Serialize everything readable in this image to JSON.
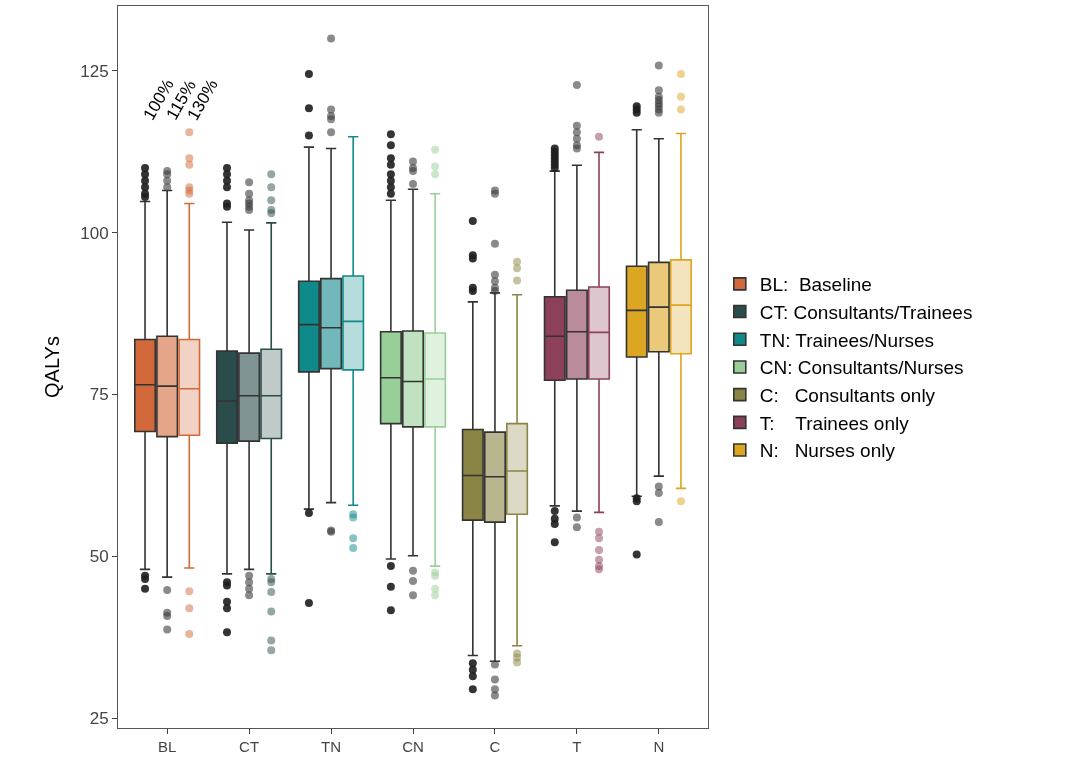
{
  "chart_data": {
    "type": "box",
    "ylabel": "QALYs",
    "categories": [
      "BL",
      "CT",
      "TN",
      "CN",
      "C",
      "T",
      "N"
    ],
    "ylim": [
      23.5,
      135
    ],
    "yticks": [
      25,
      50,
      75,
      100,
      125
    ],
    "legend": "right",
    "annotations": [
      "100%",
      "115%",
      "130%"
    ],
    "series": [
      {
        "name": "BL:  Baseline",
        "color": "#d2693a",
        "boxes": [
          {
            "low": 48,
            "q1": 69.3,
            "median": 76.5,
            "q3": 83.5,
            "high": 104.8,
            "outliers": [
              110,
              109,
              108,
              107,
              106,
              105.5,
              47,
              46.5,
              45
            ]
          },
          null,
          null,
          null,
          null,
          null,
          null
        ]
      },
      {
        "color": "#e4a589",
        "boxes": [
          {
            "low": 46.8,
            "q1": 68.5,
            "median": 76.3,
            "q3": 84,
            "high": 106.5,
            "outliers": [
              109.5,
              109,
              108,
              107,
              44.8,
              41.3,
              40.8,
              38.7
            ]
          },
          null,
          null,
          null,
          null,
          null,
          null
        ]
      },
      {
        "color": "#f2d2c4",
        "boxes": [
          {
            "low": 48.2,
            "q1": 68.7,
            "median": 75.9,
            "q3": 83.5,
            "high": 104.5,
            "outliers": [
              115.5,
              111.5,
              110.5,
              107,
              106.5,
              106,
              44.6,
              42,
              38
            ]
          },
          null,
          null,
          null,
          null,
          null,
          null
        ]
      },
      {
        "name": "CT: Consultants/Trainees",
        "color": "#2a4d4b",
        "boxes": [
          null,
          {
            "low": 47.3,
            "q1": 67.5,
            "median": 74,
            "q3": 81.7,
            "high": 101.6,
            "outliers": [
              110,
              109,
              108,
              107,
              104.5,
              104,
              46,
              45.5,
              43,
              42,
              38.3
            ]
          },
          null,
          null,
          null,
          null,
          null
        ]
      },
      {
        "color": "#7f9493",
        "boxes": [
          null,
          {
            "low": 48,
            "q1": 67.8,
            "median": 74.8,
            "q3": 81.4,
            "high": 100.4,
            "outliers": [
              107.8,
              106,
              105,
              104.5,
              104,
              103.5,
              47,
              46,
              45,
              44
            ]
          },
          null,
          null,
          null,
          null,
          null
        ]
      },
      {
        "color": "#bfcac9",
        "boxes": [
          null,
          {
            "low": 47.3,
            "q1": 68.2,
            "median": 74.8,
            "q3": 82,
            "high": 101.5,
            "outliers": [
              109,
              107,
              105,
              103.5,
              103,
              46.5,
              46,
              44.5,
              41.5,
              37,
              35.5
            ]
          },
          null,
          null,
          null,
          null,
          null
        ]
      },
      {
        "name": "TN: Trainees/Nurses",
        "color": "#10898a",
        "boxes": [
          null,
          null,
          {
            "low": 57.3,
            "q1": 78.5,
            "median": 85.8,
            "q3": 92.5,
            "high": 113.2,
            "outliers": [
              124.5,
              119.2,
              115,
              56.7,
              42.8
            ]
          },
          null,
          null,
          null,
          null
        ]
      },
      {
        "color": "#70b8b9",
        "boxes": [
          null,
          null,
          {
            "low": 58.3,
            "q1": 79,
            "median": 85.3,
            "q3": 92.9,
            "high": 113,
            "outliers": [
              130,
              119,
              118,
              117.5,
              115.5,
              54,
              53.8
            ]
          },
          null,
          null,
          null,
          null
        ]
      },
      {
        "color": "#b7dcdc",
        "boxes": [
          null,
          null,
          {
            "low": 57.9,
            "q1": 78.8,
            "median": 86.3,
            "q3": 93.3,
            "high": 114.8,
            "outliers": [
              56.5,
              56,
              52.8,
              51.3
            ]
          },
          null,
          null,
          null,
          null
        ]
      },
      {
        "name": "CN: Consultants/Nurses",
        "color": "#98cf98",
        "boxes": [
          null,
          null,
          null,
          {
            "low": 49.6,
            "q1": 70.5,
            "median": 77.6,
            "q3": 84.7,
            "high": 105,
            "outliers": [
              115.2,
              113.5,
              111.5,
              110.5,
              109,
              108,
              107,
              106,
              48.5,
              45.3,
              41.7
            ]
          },
          null,
          null,
          null
        ]
      },
      {
        "color": "#c1e2c1",
        "boxes": [
          null,
          null,
          null,
          {
            "low": 50.1,
            "q1": 70,
            "median": 77,
            "q3": 84.8,
            "high": 106.7,
            "outliers": [
              111,
              110,
              109.5,
              107.5,
              47.8,
              46.2,
              44
            ]
          },
          null,
          null,
          null
        ]
      },
      {
        "color": "#e0f1e0",
        "boxes": [
          null,
          null,
          null,
          {
            "low": 48.5,
            "q1": 70,
            "median": 77.4,
            "q3": 84.5,
            "high": 106,
            "outliers": [
              112.8,
              110.2,
              109,
              47.5,
              47,
              45,
              44
            ]
          },
          null,
          null,
          null
        ]
      },
      {
        "name": "C:   Consultants only",
        "color": "#8b8545",
        "boxes": [
          null,
          null,
          null,
          null,
          {
            "low": 34.7,
            "q1": 55.6,
            "median": 62.5,
            "q3": 69.6,
            "high": 89.3,
            "outliers": [
              101.8,
              96.5,
              96,
              91.5,
              91,
              33.5,
              32.5,
              31.5,
              29.5
            ]
          },
          null,
          null
        ]
      },
      {
        "color": "#b9b68f",
        "boxes": [
          null,
          null,
          null,
          null,
          {
            "low": 33.8,
            "q1": 55.3,
            "median": 62.3,
            "q3": 69.2,
            "high": 90.7,
            "outliers": [
              106.5,
              106,
              98.3,
              93.5,
              92.5,
              91.5,
              91,
              33.3,
              31,
              29.5,
              28.5
            ]
          },
          null,
          null
        ]
      },
      {
        "color": "#dcdac7",
        "boxes": [
          null,
          null,
          null,
          null,
          {
            "low": 36.2,
            "q1": 56.5,
            "median": 63.2,
            "q3": 70.5,
            "high": 90.4,
            "outliers": [
              95.5,
              94.5,
              92.6,
              35,
              34.4,
              33.6
            ]
          },
          null,
          null
        ]
      },
      {
        "name": "T:    Trainees only",
        "color": "#8c4059",
        "boxes": [
          null,
          null,
          null,
          null,
          null,
          {
            "low": 57.8,
            "q1": 77.2,
            "median": 84,
            "q3": 90.1,
            "high": 109.5,
            "outliers": [
              113,
              112.5,
              112,
              111.5,
              111,
              110.5,
              110,
              57,
              55.8,
              55,
              52.2
            ]
          },
          null
        ]
      },
      {
        "color": "#ba8c9b",
        "boxes": [
          null,
          null,
          null,
          null,
          null,
          {
            "low": 57,
            "q1": 77.4,
            "median": 84.7,
            "q3": 91.1,
            "high": 110.4,
            "outliers": [
              122.8,
              116.5,
              115.5,
              114.5,
              113.5,
              113,
              56,
              54.5
            ]
          },
          null
        ]
      },
      {
        "color": "#ddc6cd",
        "boxes": [
          null,
          null,
          null,
          null,
          null,
          {
            "low": 56.8,
            "q1": 77.4,
            "median": 84.6,
            "q3": 91.6,
            "high": 112.4,
            "outliers": [
              114.8,
              53.8,
              52.8,
              51,
              49.5,
              48.5,
              48
            ]
          },
          null
        ]
      },
      {
        "name": "N:   Nurses only",
        "color": "#dca522",
        "boxes": [
          null,
          null,
          null,
          null,
          null,
          null,
          {
            "low": 59.3,
            "q1": 80.8,
            "median": 88,
            "q3": 94.8,
            "high": 115.9,
            "outliers": [
              119.5,
              119,
              118.5,
              59,
              58.5,
              50.3
            ]
          }
        ]
      },
      {
        "color": "#eac97a",
        "boxes": [
          null,
          null,
          null,
          null,
          null,
          null,
          {
            "low": 62.4,
            "q1": 81.6,
            "median": 88.5,
            "q3": 95.4,
            "high": 114.5,
            "outliers": [
              125.8,
              122,
              121,
              120.5,
              120,
              119.5,
              119,
              118.5,
              60.8,
              59.8,
              55.3
            ]
          }
        ]
      },
      {
        "color": "#f4e4bd",
        "boxes": [
          null,
          null,
          null,
          null,
          null,
          null,
          {
            "low": 60.5,
            "q1": 81.3,
            "median": 88.8,
            "q3": 95.8,
            "high": 115.3,
            "outliers": [
              124.5,
              121,
              119,
              58.5
            ]
          }
        ]
      }
    ]
  }
}
